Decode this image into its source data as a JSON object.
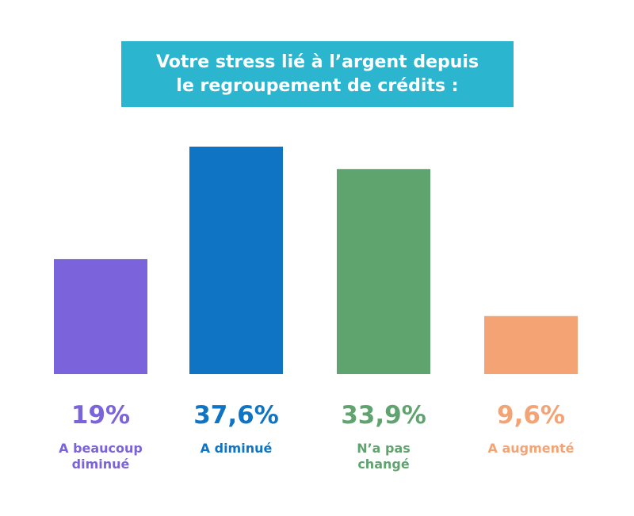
{
  "chart_data": {
    "type": "bar",
    "title": "Votre stress lié à l’argent depuis\nle regroupement de crédits :",
    "categories": [
      "A beaucoup\ndiminué",
      "A diminué",
      "N’a pas\nchangé",
      "A augmenté"
    ],
    "values": [
      19,
      37.6,
      33.9,
      9.6
    ],
    "value_labels": [
      "19%",
      "37,6%",
      "33,9%",
      "9,6%"
    ],
    "colors": [
      "#7b64db",
      "#0f74c4",
      "#5fa36e",
      "#f4a375"
    ],
    "ylim": [
      0,
      37.6
    ],
    "grid": false,
    "legend": "none"
  }
}
